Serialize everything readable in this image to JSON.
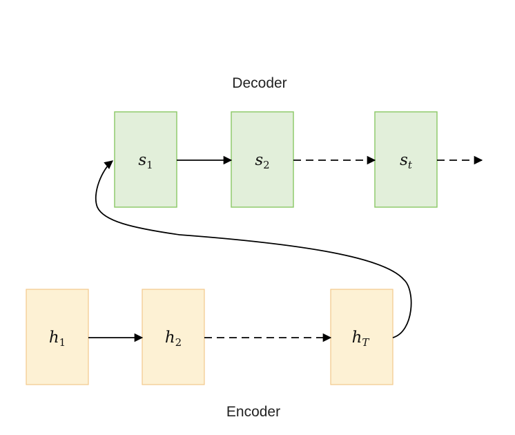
{
  "decoder": {
    "label": "Decoder",
    "fill": "#e2efda",
    "stroke": "#8fca6c",
    "nodes": [
      {
        "symbol": "s",
        "subscript": "1",
        "sub_italic": false
      },
      {
        "symbol": "s",
        "subscript": "2",
        "sub_italic": false
      },
      {
        "symbol": "s",
        "subscript": "t",
        "sub_italic": true
      }
    ]
  },
  "encoder": {
    "label": "Encoder",
    "fill": "#fdf1d4",
    "stroke": "#f2c98a",
    "nodes": [
      {
        "symbol": "h",
        "subscript": "1",
        "sub_italic": false
      },
      {
        "symbol": "h",
        "subscript": "2",
        "sub_italic": false
      },
      {
        "symbol": "h",
        "subscript": "T",
        "sub_italic": true
      }
    ]
  },
  "colors": {
    "arrow": "#000000",
    "text": "#222222"
  }
}
